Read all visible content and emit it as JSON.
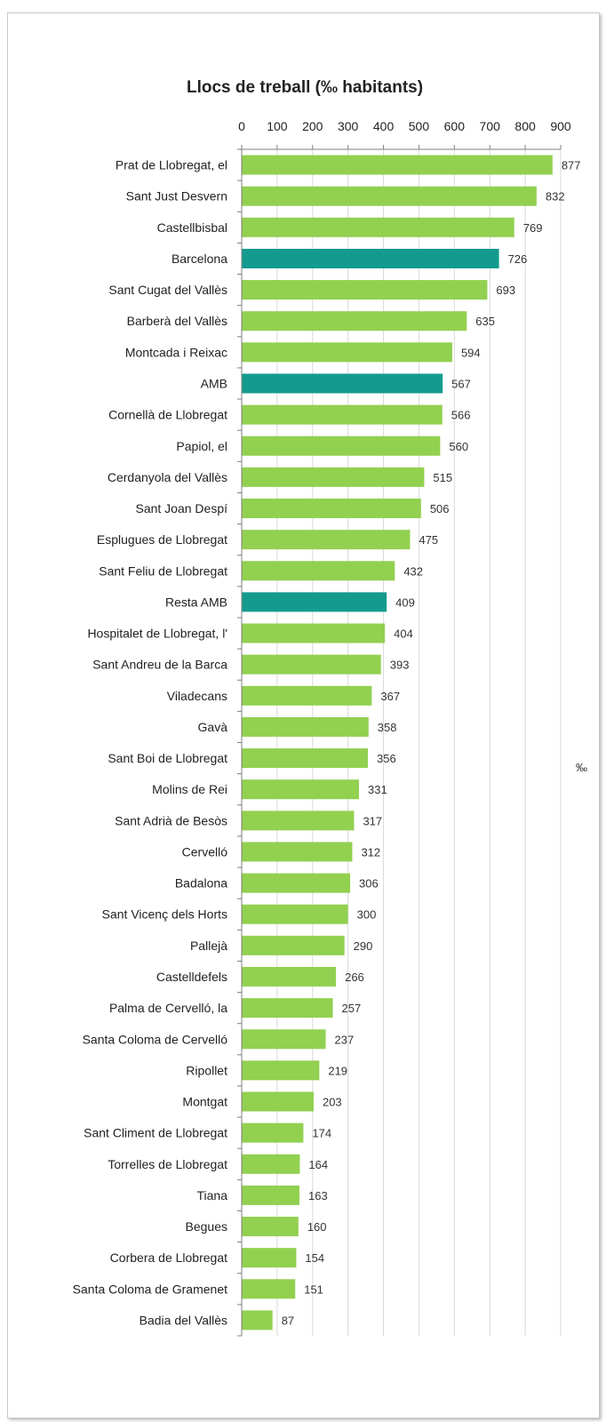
{
  "chart_data": {
    "type": "bar",
    "orientation": "horizontal",
    "title": "Llocs de treball (‰ habitants)",
    "unit_label": "‰",
    "xlim": [
      0,
      900
    ],
    "x_ticks": [
      0,
      100,
      200,
      300,
      400,
      500,
      600,
      700,
      800,
      900
    ],
    "x_axis_position": "top",
    "grid": true,
    "colors": {
      "default": "#92d050",
      "highlight": "#149b8e",
      "grid": "#d9d9d9",
      "axis": "#7f7f7f"
    },
    "categories": [
      "Prat de Llobregat, el",
      "Sant Just Desvern",
      "Castellbisbal",
      "Barcelona",
      "Sant Cugat del Vallès",
      "Barberà del Vallès",
      "Montcada i Reixac",
      "AMB",
      "Cornellà de Llobregat",
      "Papiol, el",
      "Cerdanyola del Vallès",
      "Sant Joan Despí",
      "Esplugues de Llobregat",
      "Sant Feliu de Llobregat",
      "Resta AMB",
      "Hospitalet de Llobregat, l'",
      "Sant Andreu de la Barca",
      "Viladecans",
      "Gavà",
      "Sant Boi de Llobregat",
      "Molins de Rei",
      "Sant Adrià de Besòs",
      "Cervelló",
      "Badalona",
      "Sant Vicenç dels Horts",
      "Pallejà",
      "Castelldefels",
      "Palma de Cervelló, la",
      "Santa Coloma de Cervelló",
      "Ripollet",
      "Montgat",
      "Sant Climent de Llobregat",
      "Torrelles de Llobregat",
      "Tiana",
      "Begues",
      "Corbera de Llobregat",
      "Santa Coloma de Gramenet",
      "Badia del Vallès"
    ],
    "values": [
      877,
      832,
      769,
      726,
      693,
      635,
      594,
      567,
      566,
      560,
      515,
      506,
      475,
      432,
      409,
      404,
      393,
      367,
      358,
      356,
      331,
      317,
      312,
      306,
      300,
      290,
      266,
      257,
      237,
      219,
      203,
      174,
      164,
      163,
      160,
      154,
      151,
      87
    ],
    "highlighted": [
      "Barcelona",
      "AMB",
      "Resta AMB"
    ]
  }
}
